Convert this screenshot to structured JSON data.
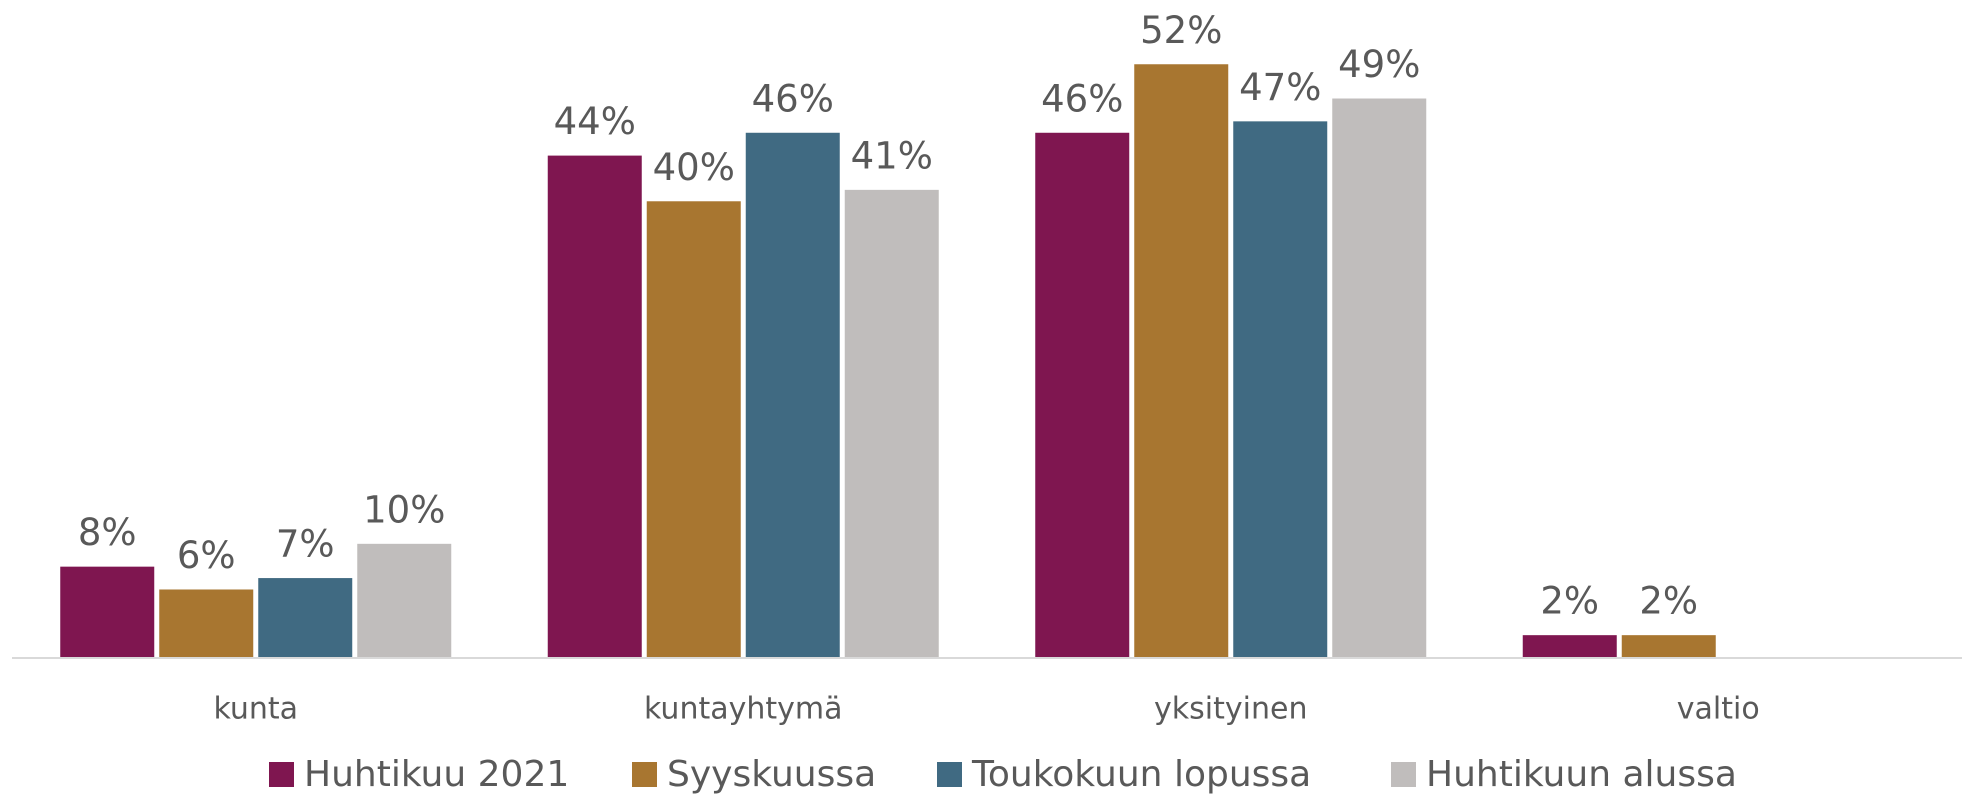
{
  "chart_data": {
    "type": "bar",
    "categories": [
      "kunta",
      "kuntayhtymä",
      "yksityinen",
      "valtio"
    ],
    "series": [
      {
        "name": "Huhtikuu 2021",
        "color": "#7f1650",
        "values": [
          8,
          44,
          46,
          2
        ],
        "value_labels": [
          "8%",
          "44%",
          "46%",
          "2%"
        ]
      },
      {
        "name": "Syyskuussa",
        "color": "#a87630",
        "values": [
          6,
          40,
          52,
          2
        ],
        "value_labels": [
          "6%",
          "40%",
          "52%",
          "2%"
        ]
      },
      {
        "name": "Toukokuun lopussa",
        "color": "#406a82",
        "values": [
          7,
          46,
          47,
          null
        ],
        "value_labels": [
          "7%",
          "46%",
          "47%",
          null
        ]
      },
      {
        "name": "Huhtikuun alussa",
        "color": "#c0bdbc",
        "values": [
          10,
          41,
          49,
          null
        ],
        "value_labels": [
          "10%",
          "41%",
          "49%",
          null
        ]
      }
    ],
    "ylim": [
      0,
      55
    ],
    "legend": "bottom"
  }
}
